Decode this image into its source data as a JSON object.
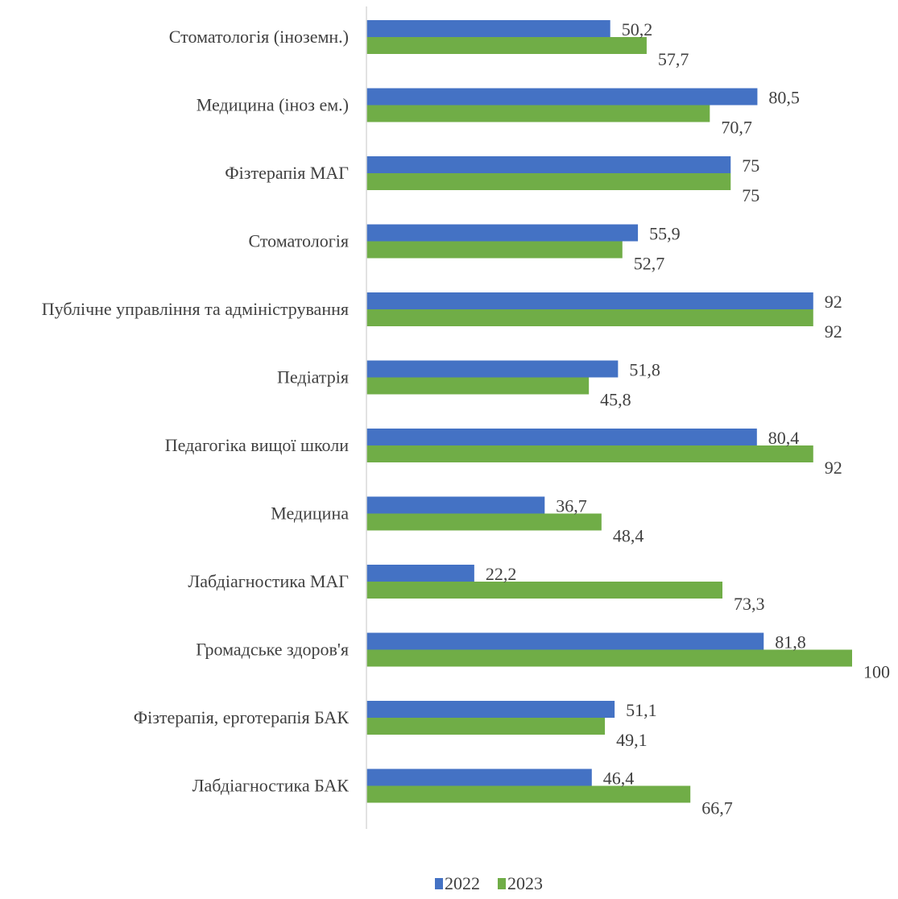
{
  "chart_data": {
    "type": "bar",
    "orientation": "horizontal",
    "categories": [
      "Стоматологія (іноземн.)",
      "Медицина (іноз ем.)",
      "Фізтерапія МАГ",
      "Стоматологія",
      "Публічне управління та адміністрування",
      "Педіатрія",
      "Педагогіка вищої школи",
      "Медицина",
      "Лабдіагностика МАГ",
      "Громадське здоров'я",
      "Фізтерапія, ерготерапія БАК",
      "Лабдіагностика БАК"
    ],
    "series": [
      {
        "name": "2022",
        "color": "#4472c4",
        "values": [
          50.2,
          80.5,
          75,
          55.9,
          92,
          51.8,
          80.4,
          36.7,
          22.2,
          81.8,
          51.1,
          46.4
        ],
        "labels": [
          "50,2",
          "80,5",
          "75",
          "55,9",
          "92",
          "51,8",
          "80,4",
          "36,7",
          "22,2",
          "81,8",
          "51,1",
          "46,4"
        ]
      },
      {
        "name": "2023",
        "color": "#70ad47",
        "values": [
          57.7,
          70.7,
          75,
          52.7,
          92,
          45.8,
          92,
          48.4,
          73.3,
          100,
          49.1,
          66.7
        ],
        "labels": [
          "57,7",
          "70,7",
          "75",
          "52,7",
          "92",
          "45,8",
          "92",
          "48,4",
          "73,3",
          "100",
          "49,1",
          "66,7"
        ]
      }
    ],
    "xlim": [
      0,
      100
    ],
    "grid": false,
    "legend_position": "bottom"
  }
}
